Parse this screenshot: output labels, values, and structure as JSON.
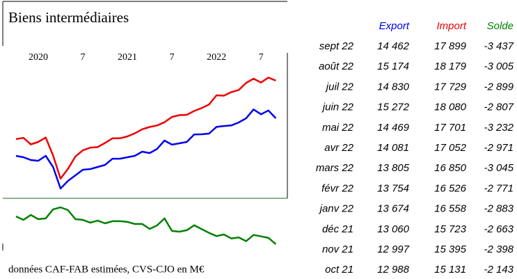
{
  "chart_data": {
    "type": "line",
    "title": "Biens intermédiaires",
    "note": "données CAF-FAB estimées, CVS-CJO en M€",
    "categories": [
      null,
      null,
      null,
      "2020",
      null,
      null,
      null,
      null,
      null,
      "7",
      null,
      null,
      null,
      null,
      null,
      "2021",
      null,
      null,
      null,
      null,
      null,
      "7",
      null,
      null,
      null,
      null,
      null,
      "2022",
      null,
      null,
      null,
      null,
      null,
      "7",
      null,
      null
    ],
    "ylim": [
      7150,
      20820
    ],
    "y2lim": [
      -3870,
      -290
    ],
    "series": [
      {
        "name": "Export",
        "color": "#0000ee",
        "values": [
          11030,
          10900,
          10650,
          10580,
          11030,
          10010,
          8040,
          8740,
          9250,
          9760,
          9820,
          10010,
          10200,
          10770,
          10770,
          10900,
          11030,
          11410,
          11280,
          11660,
          12430,
          12050,
          12170,
          12300,
          12988,
          12997,
          13060,
          13674,
          13754,
          13805,
          14081,
          14469,
          15272,
          14830,
          15174,
          14462
        ]
      },
      {
        "name": "Import",
        "color": "#ee0000",
        "values": [
          12560,
          12670,
          12080,
          12300,
          12700,
          11060,
          8950,
          9840,
          10970,
          11530,
          11780,
          11830,
          12210,
          12630,
          12630,
          12810,
          13080,
          13460,
          13670,
          13810,
          14100,
          14580,
          14750,
          14780,
          15131,
          15395,
          15723,
          16558,
          16526,
          16850,
          17052,
          17701,
          18080,
          17729,
          18179,
          17899
        ]
      },
      {
        "name": "Solde",
        "color": "#008000",
        "axis": "y2",
        "values": [
          -1530,
          -1770,
          -1430,
          -1720,
          -1670,
          -1050,
          -910,
          -1100,
          -1720,
          -1770,
          -1960,
          -1820,
          -2010,
          -1860,
          -1860,
          -1910,
          -2050,
          -2050,
          -2390,
          -2150,
          -1670,
          -2530,
          -2580,
          -2480,
          -2143,
          -2398,
          -2663,
          -2883,
          -2771,
          -3045,
          -2971,
          -3232,
          -2807,
          -2899,
          -3005,
          -3437
        ]
      }
    ]
  },
  "table": {
    "rows": [
      [
        "sept 22",
        "14 462",
        "17 899",
        "-3 437"
      ],
      [
        "août 22",
        "15 174",
        "18 179",
        "-3 005"
      ],
      [
        "juil 22",
        "14 830",
        "17 729",
        "-2 899"
      ],
      [
        "juin 22",
        "15 272",
        "18 080",
        "-2 807"
      ],
      [
        "mai 22",
        "14 469",
        "17 701",
        "-3 232"
      ],
      [
        "avr 22",
        "14 081",
        "17 052",
        "-2 971"
      ],
      [
        "mars 22",
        "13 805",
        "16 850",
        "-3 045"
      ],
      [
        "févr 22",
        "13 754",
        "16 526",
        "-2 771"
      ],
      [
        "janv 22",
        "13 674",
        "16 558",
        "-2 883"
      ],
      [
        "déc 21",
        "13 060",
        "15 723",
        "-2 663"
      ],
      [
        "nov 21",
        "12 997",
        "15 395",
        "-2 398"
      ],
      [
        "oct 21",
        "12 988",
        "15 131",
        "-2 143"
      ]
    ]
  }
}
